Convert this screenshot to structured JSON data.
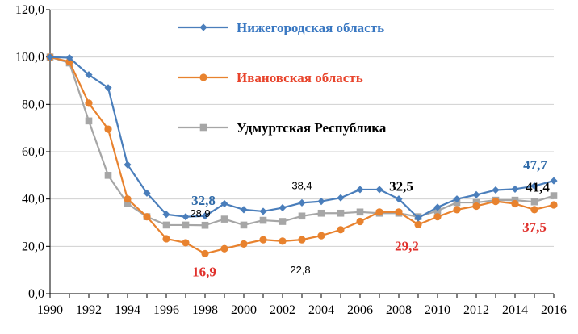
{
  "chart_data": {
    "type": "line",
    "title": "",
    "xlabel": "",
    "ylabel": "",
    "x": [
      1990,
      1991,
      1992,
      1993,
      1994,
      1995,
      1996,
      1997,
      1998,
      1999,
      2000,
      2001,
      2002,
      2003,
      2004,
      2005,
      2006,
      2007,
      2008,
      2009,
      2010,
      2011,
      2012,
      2013,
      2014,
      2015,
      2016
    ],
    "xticks": [
      "1990",
      "1992",
      "1994",
      "1996",
      "1998",
      "2000",
      "2002",
      "2004",
      "2006",
      "2008",
      "2010",
      "2012",
      "2014",
      "2016"
    ],
    "xlim": [
      1990,
      2016
    ],
    "ylim": [
      0,
      120
    ],
    "yticks": [
      "0,0",
      "20,0",
      "40,0",
      "60,0",
      "80,0",
      "100,0",
      "120,0"
    ],
    "grid": "horizontal",
    "legend": "upper center, inside plot",
    "series": [
      {
        "name": "Нижегородская область",
        "color": "#4a7ebb",
        "marker": "diamond",
        "values": [
          100,
          99.7,
          92.5,
          87,
          54.5,
          42.5,
          33.5,
          32.5,
          32.8,
          38,
          35.5,
          34.8,
          36.3,
          38.4,
          39,
          40.5,
          44,
          44,
          40,
          32,
          36.5,
          40,
          41.8,
          43.8,
          44.2,
          45.5,
          47.7
        ]
      },
      {
        "name": "Ивановская область",
        "color": "#e8822e",
        "marker": "circle",
        "values": [
          100,
          98,
          80.5,
          69.5,
          40,
          32.5,
          23.2,
          21.5,
          16.9,
          19,
          21,
          22.8,
          22.2,
          22.8,
          24.5,
          27,
          30.5,
          34.5,
          34.5,
          29.2,
          32.5,
          35.5,
          37,
          39,
          38,
          35.5,
          37.5
        ]
      },
      {
        "name": "Удмуртская Республика",
        "color": "#a6a6a6",
        "marker": "square",
        "values": [
          100,
          97.5,
          73,
          50,
          38,
          32.5,
          29,
          29,
          28.9,
          31.5,
          29,
          31,
          30.5,
          32.8,
          34,
          34,
          34.5,
          34,
          34,
          32.5,
          35,
          38.5,
          38.5,
          39.5,
          39.5,
          38.8,
          41.4
        ]
      }
    ],
    "annotations": [
      {
        "text": "32,8",
        "x": 1998,
        "y": 32.8,
        "series": 0,
        "color": "#2f6aa8",
        "style": "bold"
      },
      {
        "text": "38,4",
        "x": 2003,
        "y": 38.4,
        "series": 0,
        "color": "#000000",
        "style": "plain"
      },
      {
        "text": "47,7",
        "x": 2016,
        "y": 47.7,
        "series": 0,
        "color": "#2f6aa8",
        "style": "bold"
      },
      {
        "text": "16,9",
        "x": 1998,
        "y": 16.9,
        "series": 1,
        "color": "#e0312c",
        "style": "bold"
      },
      {
        "text": "22,8",
        "x": 2003,
        "y": 22.8,
        "series": 1,
        "color": "#000000",
        "style": "plain"
      },
      {
        "text": "29,2",
        "x": 2009,
        "y": 29.2,
        "series": 1,
        "color": "#e0312c",
        "style": "bold"
      },
      {
        "text": "37,5",
        "x": 2016,
        "y": 37.5,
        "series": 1,
        "color": "#e0312c",
        "style": "bold"
      },
      {
        "text": "28,9",
        "x": 1998,
        "y": 28.9,
        "series": 2,
        "color": "#000000",
        "style": "plain"
      },
      {
        "text": "32,5",
        "x": 2009,
        "y": 32.5,
        "series": 2,
        "color": "#000000",
        "style": "bold"
      },
      {
        "text": "41,4",
        "x": 2016,
        "y": 41.4,
        "series": 2,
        "color": "#000000",
        "style": "bold"
      }
    ]
  },
  "legend_colors": {
    "text_0": "#3a78c2",
    "text_1": "#e8442c",
    "text_2": "#000000"
  }
}
